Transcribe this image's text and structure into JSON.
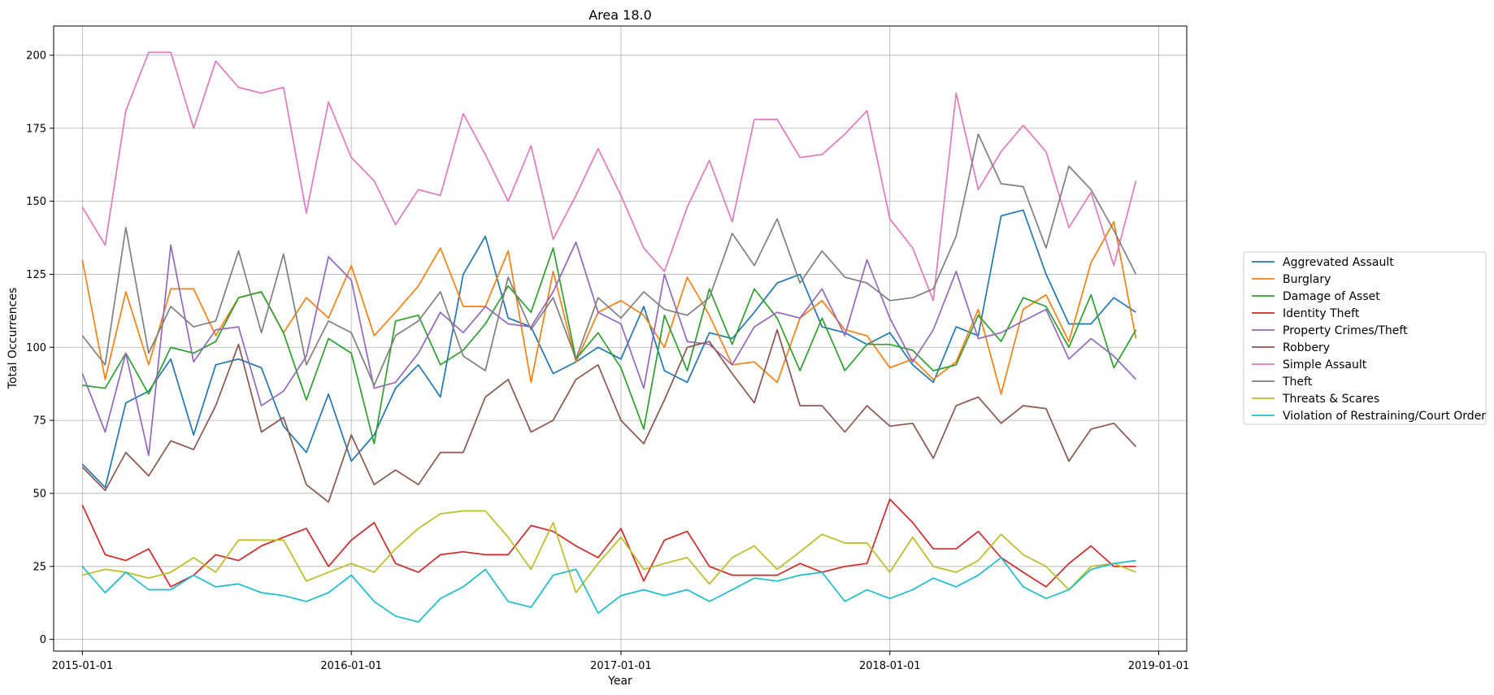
{
  "chart_data": {
    "type": "line",
    "title": "Area 18.0",
    "xlabel": "Year",
    "ylabel": "Total Occurrences",
    "x": [
      "2015-01-01",
      "2015-02-01",
      "2015-03-01",
      "2015-04-01",
      "2015-05-01",
      "2015-06-01",
      "2015-07-01",
      "2015-08-01",
      "2015-09-01",
      "2015-10-01",
      "2015-11-01",
      "2015-12-01",
      "2016-01-01",
      "2016-02-01",
      "2016-03-01",
      "2016-04-01",
      "2016-05-01",
      "2016-06-01",
      "2016-07-01",
      "2016-08-01",
      "2016-09-01",
      "2016-10-01",
      "2016-11-01",
      "2016-12-01",
      "2017-01-01",
      "2017-02-01",
      "2017-03-01",
      "2017-04-01",
      "2017-05-01",
      "2017-06-01",
      "2017-07-01",
      "2017-08-01",
      "2017-09-01",
      "2017-10-01",
      "2017-11-01",
      "2017-12-01",
      "2018-01-01",
      "2018-02-01",
      "2018-03-01",
      "2018-04-01",
      "2018-05-01",
      "2018-06-01",
      "2018-07-01",
      "2018-08-01",
      "2018-09-01",
      "2018-10-01",
      "2018-11-01",
      "2018-12-01"
    ],
    "xticks": [
      "2015-01-01",
      "2016-01-01",
      "2017-01-01",
      "2018-01-01",
      "2019-01-01"
    ],
    "xlim": [
      "2014-11-23",
      "2019-02-08"
    ],
    "ylim": [
      -4,
      210
    ],
    "yticks": [
      0,
      25,
      50,
      75,
      100,
      125,
      150,
      175,
      200
    ],
    "grid": true,
    "legend": "outside-right",
    "series": [
      {
        "name": "Aggrevated Assault",
        "color": "#1f77b4",
        "values": [
          60,
          52,
          81,
          85,
          96,
          70,
          94,
          96,
          93,
          73,
          64,
          84,
          61,
          70,
          86,
          94,
          83,
          125,
          138,
          110,
          107,
          91,
          95,
          100,
          96,
          114,
          92,
          88,
          105,
          103,
          112,
          122,
          125,
          107,
          105,
          101,
          105,
          94,
          88,
          107,
          104,
          145,
          147,
          125,
          108,
          108,
          117,
          112
        ]
      },
      {
        "name": "Burglary",
        "color": "#ff7f0e",
        "values": [
          130,
          89,
          119,
          94,
          120,
          120,
          104,
          117,
          119,
          105,
          117,
          110,
          128,
          104,
          112,
          121,
          134,
          114,
          114,
          133,
          88,
          126,
          95,
          112,
          116,
          111,
          100,
          124,
          111,
          94,
          95,
          88,
          110,
          116,
          106,
          104,
          93,
          96,
          89,
          95,
          113,
          84,
          113,
          118,
          102,
          129,
          143,
          103
        ]
      },
      {
        "name": "Damage of Asset",
        "color": "#2ca02c",
        "values": [
          87,
          86,
          98,
          84,
          100,
          98,
          102,
          117,
          119,
          105,
          82,
          103,
          98,
          67,
          109,
          111,
          94,
          99,
          108,
          121,
          112,
          134,
          96,
          105,
          93,
          72,
          111,
          92,
          120,
          101,
          120,
          110,
          92,
          110,
          92,
          101,
          101,
          99,
          92,
          94,
          111,
          102,
          117,
          114,
          100,
          118,
          93,
          106
        ]
      },
      {
        "name": "Identity Theft",
        "color": "#d62728",
        "values": [
          46,
          29,
          27,
          31,
          18,
          22,
          29,
          27,
          32,
          35,
          38,
          25,
          34,
          40,
          26,
          23,
          29,
          30,
          29,
          29,
          39,
          37,
          32,
          28,
          38,
          20,
          34,
          37,
          25,
          22,
          22,
          22,
          26,
          23,
          25,
          26,
          48,
          40,
          31,
          31,
          37,
          28,
          23,
          18,
          26,
          32,
          25,
          25
        ]
      },
      {
        "name": "Property Crimes/Theft",
        "color": "#9467bd",
        "values": [
          91,
          71,
          98,
          63,
          135,
          95,
          106,
          107,
          80,
          85,
          97,
          131,
          123,
          86,
          88,
          98,
          112,
          105,
          114,
          108,
          107,
          119,
          136,
          112,
          108,
          86,
          125,
          102,
          101,
          94,
          107,
          112,
          110,
          120,
          104,
          130,
          110,
          95,
          106,
          126,
          103,
          105,
          109,
          113,
          96,
          103,
          97,
          89
        ]
      },
      {
        "name": "Robbery",
        "color": "#8c564b",
        "values": [
          59,
          51,
          64,
          56,
          68,
          65,
          80,
          101,
          71,
          76,
          53,
          47,
          70,
          53,
          58,
          53,
          64,
          64,
          83,
          89,
          71,
          75,
          89,
          94,
          75,
          67,
          82,
          100,
          102,
          91,
          81,
          106,
          80,
          80,
          71,
          80,
          73,
          74,
          62,
          80,
          83,
          74,
          80,
          79,
          61,
          72,
          74,
          66
        ]
      },
      {
        "name": "Simple Assault",
        "color": "#e377c2",
        "values": [
          148,
          135,
          181,
          201,
          201,
          175,
          198,
          189,
          187,
          189,
          146,
          184,
          165,
          157,
          142,
          154,
          152,
          180,
          166,
          150,
          169,
          137,
          152,
          168,
          152,
          134,
          126,
          148,
          164,
          143,
          178,
          178,
          165,
          166,
          173,
          181,
          144,
          134,
          116,
          187,
          154,
          167,
          176,
          167,
          141,
          153,
          128,
          157
        ]
      },
      {
        "name": "Theft",
        "color": "#7f7f7f",
        "values": [
          104,
          94,
          141,
          98,
          114,
          107,
          109,
          133,
          105,
          132,
          94,
          109,
          105,
          87,
          104,
          109,
          119,
          97,
          92,
          124,
          106,
          117,
          96,
          117,
          110,
          119,
          113,
          111,
          117,
          139,
          128,
          144,
          122,
          133,
          124,
          122,
          116,
          117,
          120,
          138,
          173,
          156,
          155,
          134,
          162,
          154,
          140,
          125
        ]
      },
      {
        "name": "Threats & Scares",
        "color": "#bcbd22",
        "values": [
          22,
          24,
          23,
          21,
          23,
          28,
          23,
          34,
          34,
          34,
          20,
          23,
          26,
          23,
          31,
          38,
          43,
          44,
          44,
          35,
          24,
          40,
          16,
          26,
          35,
          24,
          26,
          28,
          19,
          28,
          32,
          24,
          30,
          36,
          33,
          33,
          23,
          35,
          25,
          23,
          27,
          36,
          29,
          25,
          17,
          25,
          26,
          23
        ]
      },
      {
        "name": "Violation of Restraining/Court Order",
        "color": "#17becf",
        "values": [
          25,
          16,
          23,
          17,
          17,
          22,
          18,
          19,
          16,
          15,
          13,
          16,
          22,
          13,
          8,
          6,
          14,
          18,
          24,
          13,
          11,
          22,
          24,
          9,
          15,
          17,
          15,
          17,
          13,
          17,
          21,
          20,
          22,
          23,
          13,
          17,
          14,
          17,
          21,
          18,
          22,
          28,
          18,
          14,
          17,
          24,
          26,
          27
        ]
      }
    ]
  }
}
